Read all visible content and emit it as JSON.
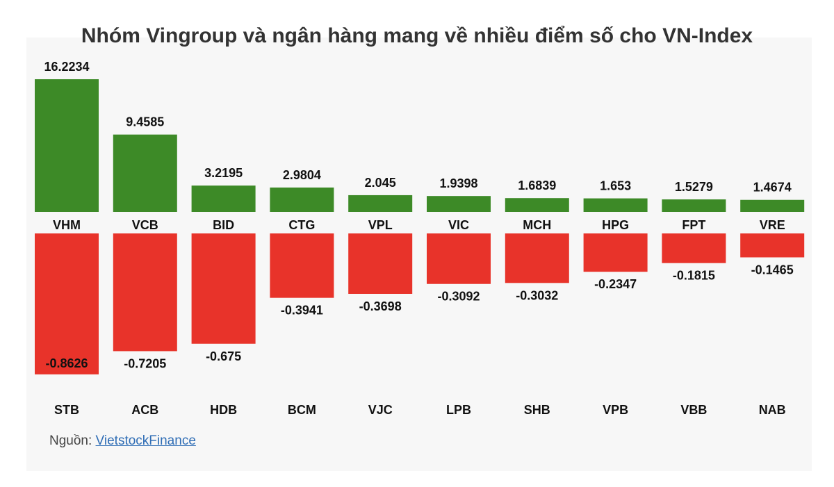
{
  "title": "Nhóm Vingroup và ngân hàng mang về nhiều điểm số cho VN-Index",
  "source": {
    "label": "Nguồn: ",
    "link_text": "VietstockFinance"
  },
  "colors": {
    "positive": "#3d8a27",
    "negative": "#e8332a",
    "background": "#f7f7f7",
    "text": "#111111"
  },
  "chart_data": {
    "type": "bar",
    "layout": "diverging",
    "gainers": {
      "categories": [
        "VHM",
        "VCB",
        "BID",
        "CTG",
        "VPL",
        "VIC",
        "MCH",
        "HPG",
        "FPT",
        "VRE"
      ],
      "values": [
        16.2234,
        9.4585,
        3.2195,
        2.9804,
        2.045,
        1.9398,
        1.6839,
        1.653,
        1.5279,
        1.4674
      ],
      "value_labels": [
        "16.2234",
        "9.4585",
        "3.2195",
        "2.9804",
        "2.045",
        "1.9398",
        "1.6839",
        "1.653",
        "1.5279",
        "1.4674"
      ]
    },
    "losers": {
      "categories": [
        "STB",
        "ACB",
        "HDB",
        "BCM",
        "VJC",
        "LPB",
        "SHB",
        "VPB",
        "VBB",
        "NAB"
      ],
      "values": [
        -0.8626,
        -0.7205,
        -0.675,
        -0.3941,
        -0.3698,
        -0.3092,
        -0.3032,
        -0.2347,
        -0.1815,
        -0.1465
      ],
      "value_labels": [
        "-0.8626",
        "-0.7205",
        "-0.675",
        "-0.3941",
        "-0.3698",
        "-0.3092",
        "-0.3032",
        "-0.2347",
        "-0.1815",
        "-0.1465"
      ]
    }
  }
}
